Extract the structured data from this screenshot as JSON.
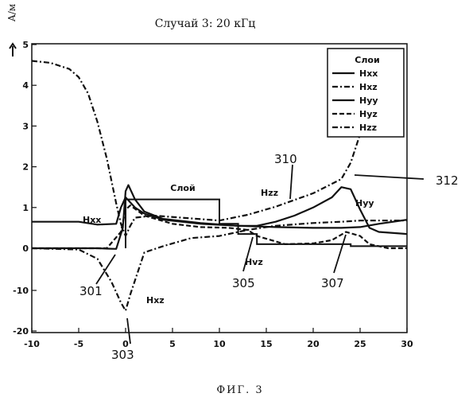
{
  "chart_data": {
    "type": "line",
    "title": "Случай 3: 20 кГц",
    "ylabel": "А/м",
    "xlim": [
      -10,
      30
    ],
    "ylim_note": "piecewise scale: upper 0..5 linear, lower 0..-20",
    "xticks": [
      "-10",
      "-5",
      "0",
      "5",
      "10",
      "15",
      "20",
      "25",
      "30"
    ],
    "yticks": [
      "5",
      "4",
      "3",
      "2",
      "1",
      "0",
      "-10",
      "-20"
    ],
    "legend": {
      "title": "Слои",
      "placement": "top-right",
      "entries": [
        "Hxx",
        "Hxz",
        "Hyy",
        "Hyz",
        "Hzz"
      ]
    },
    "layer_label": "Слой",
    "annotations": {
      "hxx": "Hxx",
      "hxz": "Hxz",
      "hyy": "Hyy",
      "hyz": "Hvz",
      "hzz": "Hzz"
    },
    "callouts": [
      "301",
      "303",
      "305",
      "307",
      "310",
      "312"
    ],
    "series": [
      {
        "name": "Hxx",
        "style": "solid",
        "x": [
          -10,
          -5,
          -3,
          -1,
          -0.5,
          0,
          1,
          2,
          4,
          8,
          12,
          16,
          20,
          23,
          25,
          27,
          30
        ],
        "y": [
          0.65,
          0.65,
          0.58,
          0.6,
          1.0,
          1.25,
          1.0,
          0.85,
          0.7,
          0.6,
          0.55,
          0.52,
          0.5,
          0.5,
          0.52,
          0.6,
          0.7
        ]
      },
      {
        "name": "Hxz",
        "style": "dashdot",
        "x": [
          -10,
          -5,
          -3,
          -1.5,
          -0.5,
          0,
          0.5,
          2,
          4,
          7,
          10,
          13,
          16,
          20,
          23,
          25,
          26,
          28,
          30
        ],
        "y": [
          0.0,
          -0.3,
          -2.5,
          -8,
          -13,
          -15,
          -11,
          -1,
          0.05,
          0.25,
          0.3,
          0.45,
          0.55,
          0.62,
          0.65,
          0.68,
          0.68,
          0.68,
          0.68
        ]
      },
      {
        "name": "Hyy",
        "style": "solid",
        "x": [
          -10,
          -3,
          -2,
          -1,
          -0.3,
          0,
          0.3,
          1,
          2,
          4,
          8,
          12,
          14,
          16,
          18,
          20,
          22,
          23,
          24,
          25,
          26,
          27,
          30
        ],
        "y": [
          0.0,
          0.0,
          -0.1,
          -0.15,
          0.5,
          1.4,
          1.55,
          1.2,
          0.9,
          0.72,
          0.62,
          0.55,
          0.55,
          0.65,
          0.8,
          1.0,
          1.25,
          1.5,
          1.45,
          0.95,
          0.5,
          0.4,
          0.35
        ]
      },
      {
        "name": "Hyz",
        "style": "dashed",
        "x": [
          -10,
          -2,
          -0.5,
          0,
          0.5,
          2,
          5,
          8,
          11,
          13,
          14,
          17,
          20,
          22,
          23.5,
          25,
          26,
          28,
          30
        ],
        "y": [
          0.0,
          0.0,
          0.4,
          0.95,
          1.05,
          0.8,
          0.6,
          0.52,
          0.5,
          0.45,
          0.3,
          0.1,
          0.12,
          0.2,
          0.4,
          0.3,
          0.1,
          0.0,
          0.0
        ]
      },
      {
        "name": "Hzz",
        "style": "dashdot",
        "x": [
          -10,
          -8,
          -6,
          -5,
          -4,
          -3,
          -2,
          -1,
          -0.5,
          0,
          0.5,
          1,
          3,
          6,
          10,
          13,
          16,
          20,
          23,
          24,
          25,
          25.5
        ],
        "y": [
          4.6,
          4.55,
          4.4,
          4.2,
          3.8,
          3.1,
          2.2,
          1.1,
          0.6,
          0.3,
          0.55,
          0.75,
          0.8,
          0.75,
          0.68,
          0.82,
          1.02,
          1.35,
          1.7,
          2.1,
          2.8,
          3.1
        ]
      }
    ]
  },
  "figure_caption": "ФИГ. 3"
}
